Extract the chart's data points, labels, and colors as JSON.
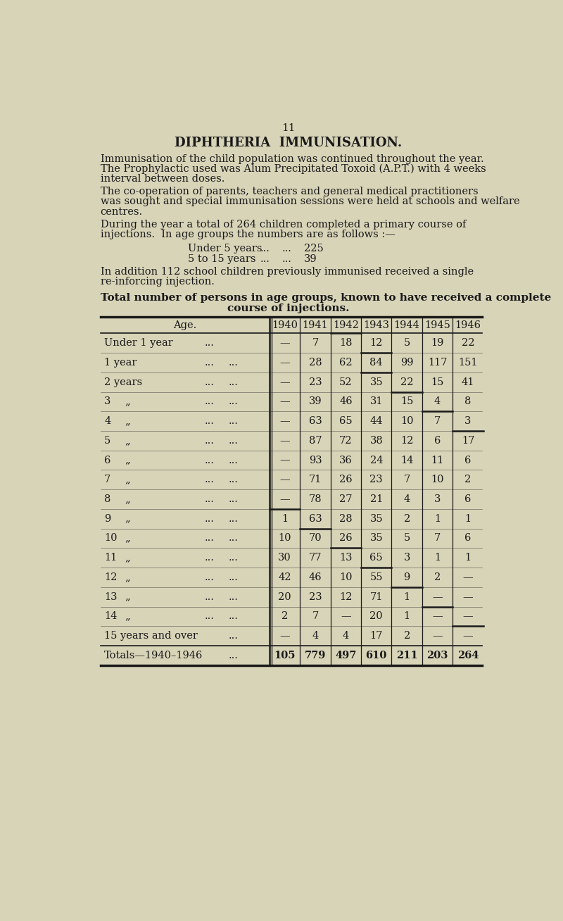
{
  "page_number": "11",
  "title": "DIPHTHERIA  IMMUNISATION.",
  "para1_lines": [
    "Immunisation of the child population was continued throughout the year.",
    "The Prophylactic used was Alum Precipitated Toxoid (A.P.T.) with 4 weeks",
    "interval between doses."
  ],
  "para2_lines": [
    "The co-operation of parents, teachers and general medical practitioners",
    "was sought and special immunisation sessions were held at schools and welfare",
    "centres."
  ],
  "para3_lines": [
    "During the year a total of 264 children completed a primary course of",
    "injections.  In age groups the numbers are as follows :—"
  ],
  "under5_val": "225",
  "5to15_val": "39",
  "para4_lines": [
    "In addition 112 school children previously immunised received a single",
    "re-inforcing injection."
  ],
  "table_heading_line1": "Total number of persons in age groups, known to have received a complete",
  "table_heading_line2": "course of injections.",
  "year_headers": [
    "1940",
    "1941",
    "1942",
    "1943",
    "1944",
    "1945",
    "1946"
  ],
  "row_labels": [
    "Under 1 year",
    "1 year",
    "2 years",
    "3",
    "4",
    "5",
    "6",
    "7",
    "8",
    "9",
    "10",
    "11",
    "12",
    "13",
    "14",
    "15 years and over",
    "Totals—1940–1946"
  ],
  "data": [
    [
      "—",
      "7",
      "18",
      "12",
      "5",
      "19",
      "22"
    ],
    [
      "—",
      "28",
      "62",
      "84",
      "99",
      "117",
      "151"
    ],
    [
      "—",
      "23",
      "52",
      "35",
      "22",
      "15",
      "41"
    ],
    [
      "—",
      "39",
      "46",
      "31",
      "15",
      "4",
      "8"
    ],
    [
      "—",
      "63",
      "65",
      "44",
      "10",
      "7",
      "3"
    ],
    [
      "—",
      "87",
      "72",
      "38",
      "12",
      "6",
      "17"
    ],
    [
      "—",
      "93",
      "36",
      "24",
      "14",
      "11",
      "6"
    ],
    [
      "—",
      "71",
      "26",
      "23",
      "7",
      "10",
      "2"
    ],
    [
      "—",
      "78",
      "27",
      "21",
      "4",
      "3",
      "6"
    ],
    [
      "1",
      "63",
      "28",
      "35",
      "2",
      "1",
      "1"
    ],
    [
      "10",
      "70",
      "26",
      "35",
      "5",
      "7",
      "6"
    ],
    [
      "30",
      "77",
      "13",
      "65",
      "3",
      "1",
      "1"
    ],
    [
      "42",
      "46",
      "10",
      "55",
      "9",
      "2",
      "—"
    ],
    [
      "20",
      "23",
      "12",
      "71",
      "1",
      "—",
      "—"
    ],
    [
      "2",
      "7",
      "—",
      "20",
      "1",
      "—",
      "—"
    ],
    [
      "—",
      "4",
      "4",
      "17",
      "2",
      "—",
      "—"
    ],
    [
      "105",
      "779",
      "497",
      "610",
      "211",
      "203",
      "264"
    ]
  ],
  "staircase_lines": [
    [
      0,
      2
    ],
    [
      1,
      3
    ],
    [
      2,
      3
    ],
    [
      3,
      4
    ],
    [
      4,
      5
    ],
    [
      5,
      6
    ],
    [
      9,
      0
    ],
    [
      10,
      1
    ],
    [
      11,
      2
    ],
    [
      12,
      3
    ],
    [
      13,
      4
    ],
    [
      14,
      5
    ],
    [
      15,
      6
    ]
  ],
  "background_color": "#d8d4b8",
  "text_color": "#1a1a1a",
  "line_color": "#1a1a1a"
}
